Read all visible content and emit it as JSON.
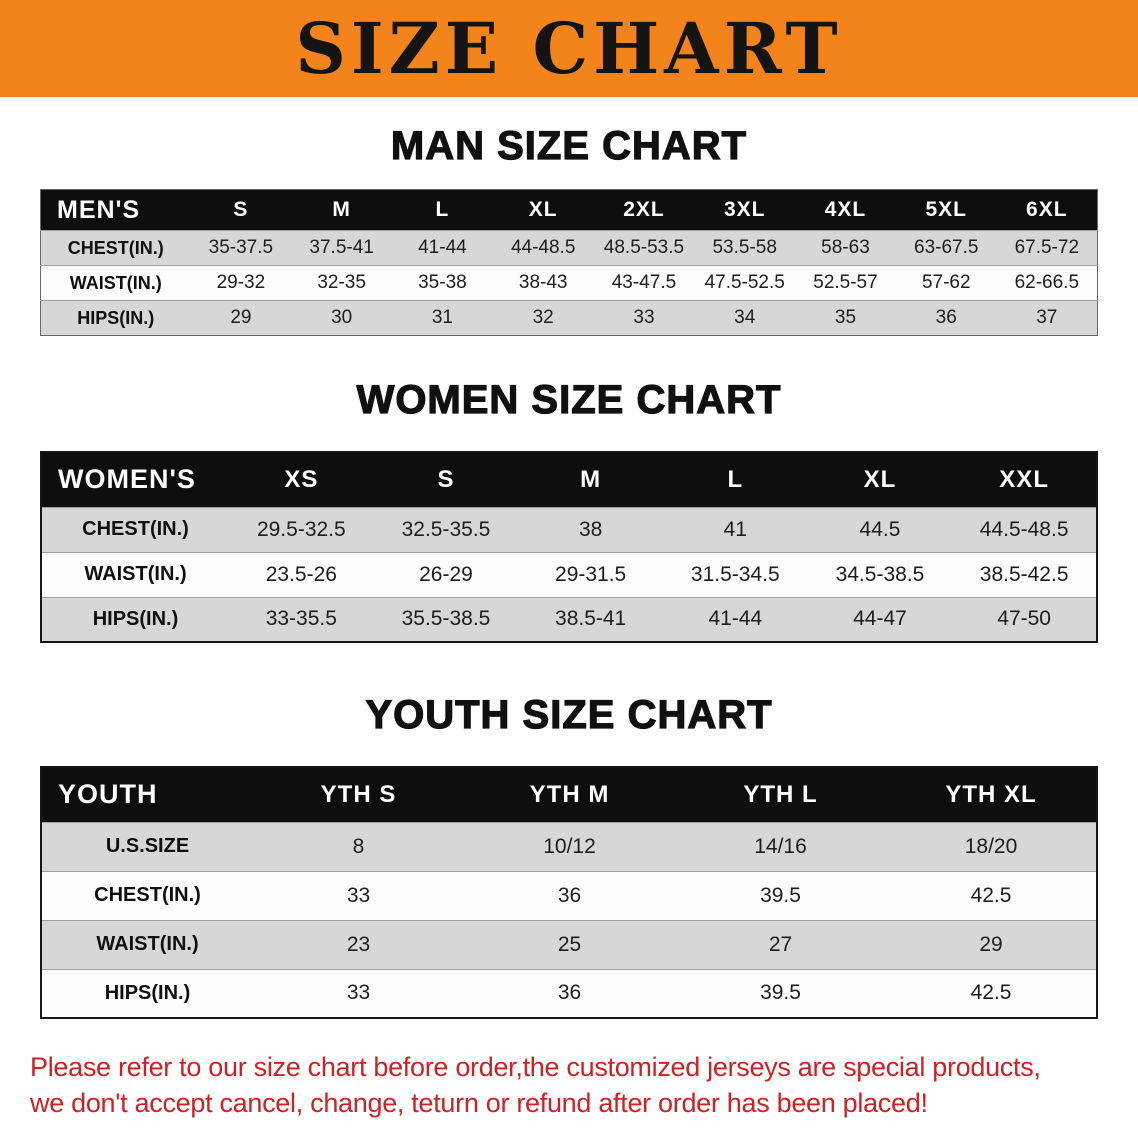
{
  "banner": {
    "title": "SIZE CHART",
    "bg_color": "#f3831b"
  },
  "sections": [
    {
      "heading": "MAN SIZE CHART",
      "table": {
        "header": [
          "MEN'S",
          "S",
          "M",
          "L",
          "XL",
          "2XL",
          "3XL",
          "4XL",
          "5XL",
          "6XL"
        ],
        "rows": [
          [
            "CHEST(IN.)",
            "35-37.5",
            "37.5-41",
            "41-44",
            "44-48.5",
            "48.5-53.5",
            "53.5-58",
            "58-63",
            "63-67.5",
            "67.5-72"
          ],
          [
            "WAIST(IN.)",
            "29-32",
            "32-35",
            "35-38",
            "38-43",
            "43-47.5",
            "47.5-52.5",
            "52.5-57",
            "57-62",
            "62-66.5"
          ],
          [
            "HIPS(IN.)",
            "29",
            "30",
            "31",
            "32",
            "33",
            "34",
            "35",
            "36",
            "37"
          ]
        ]
      }
    },
    {
      "heading": "WOMEN SIZE CHART",
      "table": {
        "header": [
          "WOMEN'S",
          "XS",
          "S",
          "M",
          "L",
          "XL",
          "XXL"
        ],
        "rows": [
          [
            "CHEST(IN.)",
            "29.5-32.5",
            "32.5-35.5",
            "38",
            "41",
            "44.5",
            "44.5-48.5"
          ],
          [
            "WAIST(IN.)",
            "23.5-26",
            "26-29",
            "29-31.5",
            "31.5-34.5",
            "34.5-38.5",
            "38.5-42.5"
          ],
          [
            "HIPS(IN.)",
            "33-35.5",
            "35.5-38.5",
            "38.5-41",
            "41-44",
            "44-47",
            "47-50"
          ]
        ]
      }
    },
    {
      "heading": "YOUTH SIZE CHART",
      "table": {
        "header": [
          "YOUTH",
          "YTH S",
          "YTH M",
          "YTH L",
          "YTH XL"
        ],
        "rows": [
          [
            "U.S.SIZE",
            "8",
            "10/12",
            "14/16",
            "18/20"
          ],
          [
            "CHEST(IN.)",
            "33",
            "36",
            "39.5",
            "42.5"
          ],
          [
            "WAIST(IN.)",
            "23",
            "25",
            "27",
            "29"
          ],
          [
            "HIPS(IN.)",
            "33",
            "36",
            "39.5",
            "42.5"
          ]
        ]
      }
    }
  ],
  "disclaimer": {
    "color": "#cd2127",
    "lines": [
      "Please refer to our size chart before order,the customized jerseys are special products,",
      "we don't accept cancel, change, teturn or refund after order has been placed!"
    ]
  }
}
